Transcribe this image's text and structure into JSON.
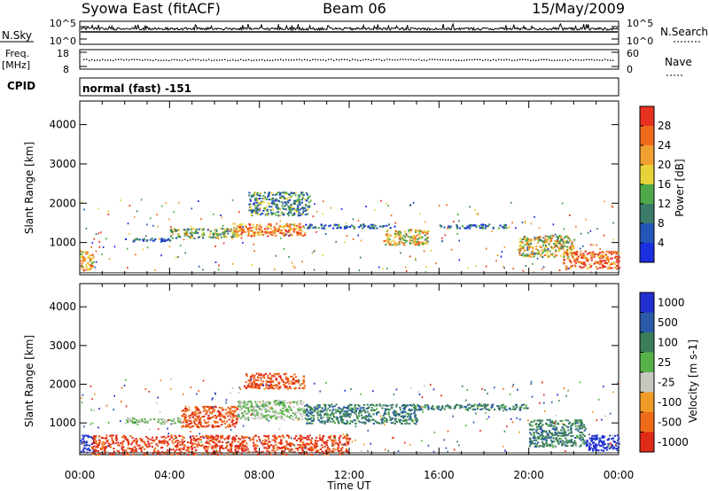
{
  "header": {
    "station": "Syowa East (fitACF)",
    "beam": "Beam 06",
    "date": "15/May/2009"
  },
  "top_panels": {
    "nsky_label": "N.Sky",
    "nsky_top": "10^5",
    "nsky_bottom": "10^0",
    "nsearch_label": "N.Search",
    "nsearch_top": "10^5",
    "nsearch_bottom": "10^0",
    "freq_label": "Freq.",
    "freq_unit": "[MHz]",
    "freq_top": "18",
    "freq_bottom": "8",
    "nave_label": "Nave",
    "nave_top": "60",
    "nave_bottom": "0",
    "cpid_label": "CPID",
    "cpid_text": "normal (fast) -151"
  },
  "x_axis": {
    "label": "Time UT",
    "ticks": [
      "00:00",
      "04:00",
      "08:00",
      "12:00",
      "16:00",
      "20:00",
      "00:00"
    ]
  },
  "colors": {
    "power_scale": [
      "#1a2fe0",
      "#2356b8",
      "#3c7a6a",
      "#4fa84a",
      "#e8d23a",
      "#f0a030",
      "#f06a1e",
      "#e83220"
    ],
    "velocity_scale": [
      "#2030d0",
      "#2b5aa8",
      "#3a7e5a",
      "#58b048",
      "#c8c8c0",
      "#f09a28",
      "#ee6a18",
      "#e02a18"
    ]
  },
  "chart_data": [
    {
      "type": "heatmap",
      "title": "",
      "xlabel": "",
      "ylabel": "Slant Range [km]",
      "xlim_hours": [
        0,
        24
      ],
      "ylim": [
        180,
        4600
      ],
      "yticks": [
        "1000",
        "2000",
        "3000",
        "4000"
      ],
      "colorbar": {
        "label": "Power [dB]",
        "ticks": [
          "4",
          "8",
          "12",
          "16",
          "20",
          "24",
          "28"
        ],
        "range": [
          0,
          32
        ]
      },
      "bands": [
        {
          "t0": 2.0,
          "t1": 4.0,
          "r0": 1040,
          "r1": 1130,
          "level": 0.2
        },
        {
          "t0": 4.0,
          "t1": 7.0,
          "r0": 1120,
          "r1": 1380,
          "level": 0.45
        },
        {
          "t0": 6.8,
          "t1": 10.0,
          "r0": 1180,
          "r1": 1500,
          "level": 0.75
        },
        {
          "t0": 7.5,
          "t1": 10.2,
          "r0": 1700,
          "r1": 2300,
          "level": 0.35
        },
        {
          "t0": 10.0,
          "t1": 14.0,
          "r0": 1380,
          "r1": 1480,
          "level": 0.2
        },
        {
          "t0": 13.5,
          "t1": 15.5,
          "r0": 950,
          "r1": 1350,
          "level": 0.6
        },
        {
          "t0": 16.0,
          "t1": 19.0,
          "r0": 1380,
          "r1": 1480,
          "level": 0.25
        },
        {
          "t0": 19.5,
          "t1": 22.0,
          "r0": 650,
          "r1": 1200,
          "level": 0.55
        },
        {
          "t0": 21.5,
          "t1": 24.0,
          "r0": 350,
          "r1": 800,
          "level": 0.85
        },
        {
          "t0": 0.0,
          "t1": 0.6,
          "r0": 300,
          "r1": 800,
          "level": 0.7
        }
      ]
    },
    {
      "type": "heatmap",
      "title": "",
      "xlabel": "Time UT",
      "ylabel": "Slant Range [km]",
      "xlim_hours": [
        0,
        24
      ],
      "ylim": [
        180,
        4600
      ],
      "yticks": [
        "1000",
        "2000",
        "3000",
        "4000"
      ],
      "colorbar": {
        "label": "Velocity [m s-1]",
        "ticks": [
          "1000",
          "500",
          "100",
          "25",
          "-25",
          "-100",
          "-500",
          "-1000"
        ]
      },
      "bands": [
        {
          "t0": 2.0,
          "t1": 4.5,
          "r0": 1000,
          "r1": 1150,
          "level": 0.5
        },
        {
          "t0": 4.5,
          "t1": 7.0,
          "r0": 900,
          "r1": 1450,
          "level": 0.85
        },
        {
          "t0": 7.0,
          "t1": 10.0,
          "r0": 1100,
          "r1": 1600,
          "level": 0.5
        },
        {
          "t0": 7.3,
          "t1": 10.0,
          "r0": 1900,
          "r1": 2300,
          "level": 0.85
        },
        {
          "t0": 10.0,
          "t1": 15.0,
          "r0": 1000,
          "r1": 1500,
          "level": 0.3
        },
        {
          "t0": 15.0,
          "t1": 20.0,
          "r0": 1350,
          "r1": 1500,
          "level": 0.3
        },
        {
          "t0": 20.0,
          "t1": 22.5,
          "r0": 400,
          "r1": 1100,
          "level": 0.3
        },
        {
          "t0": 22.5,
          "t1": 24.0,
          "r0": 300,
          "r1": 700,
          "level": 0.05
        },
        {
          "t0": 0.0,
          "t1": 0.6,
          "r0": 250,
          "r1": 700,
          "level": 0.05
        },
        {
          "t0": 0.5,
          "t1": 12.0,
          "r0": 200,
          "r1": 700,
          "level": 0.9
        }
      ]
    }
  ]
}
